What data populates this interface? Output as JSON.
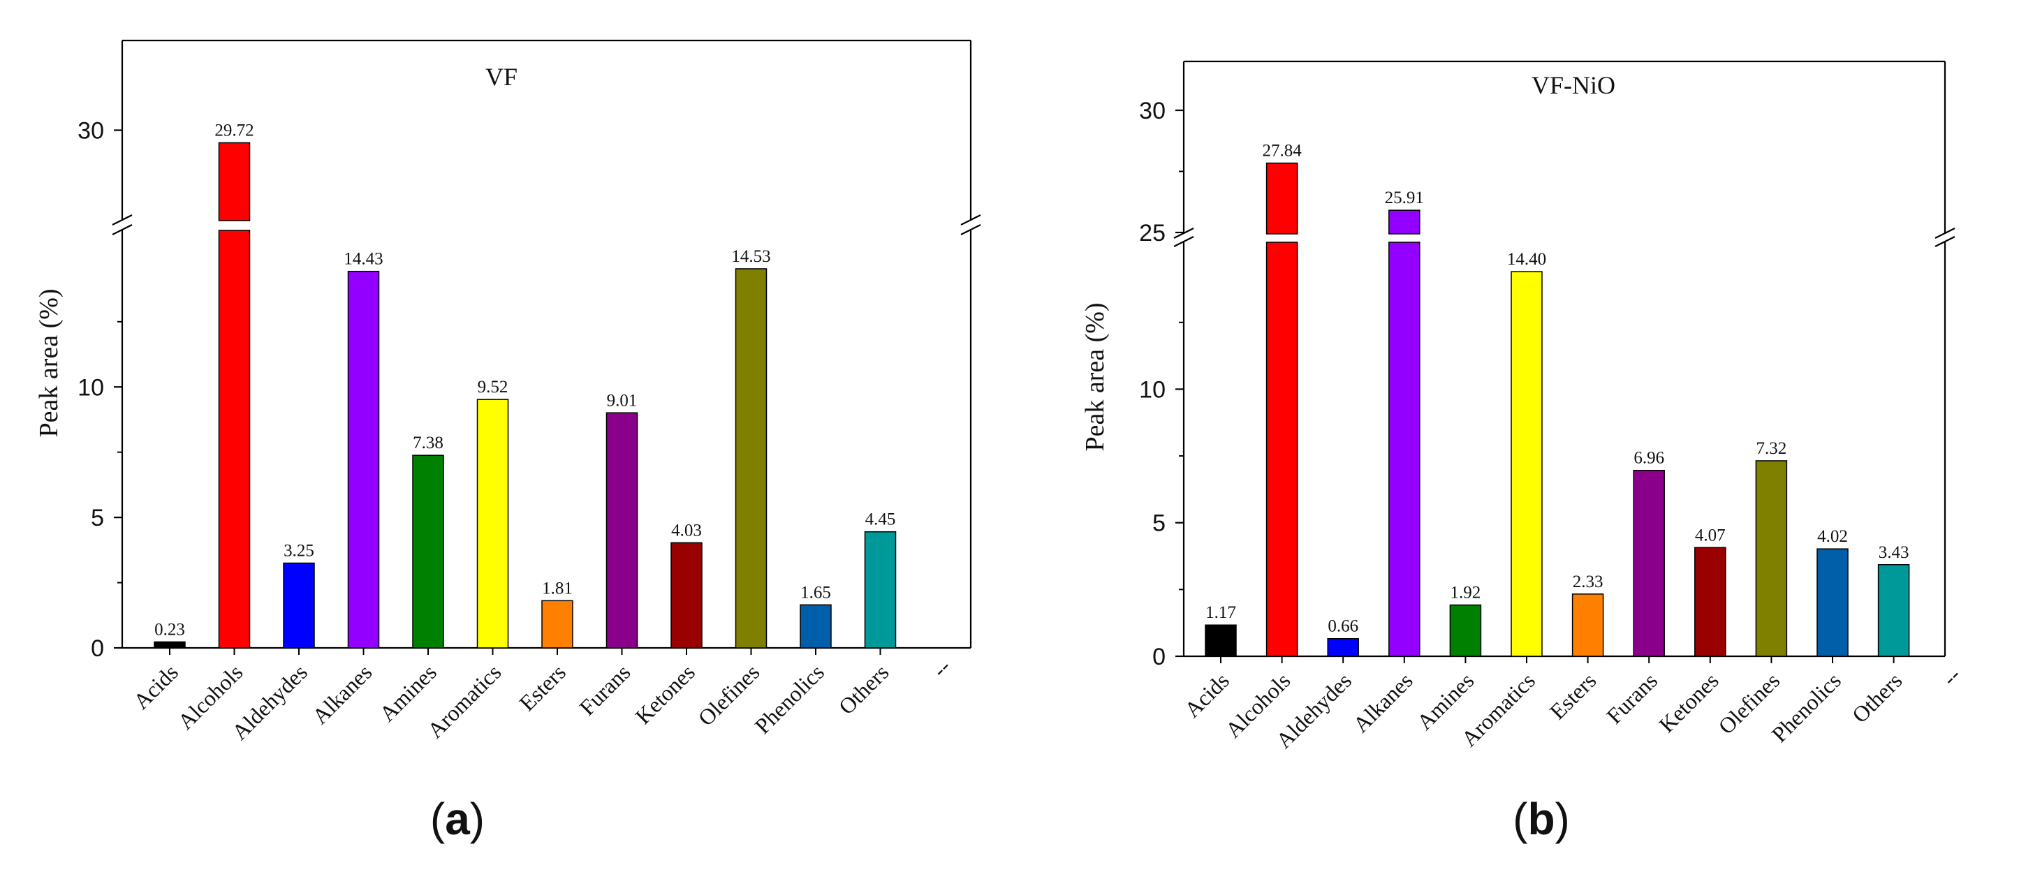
{
  "chart_data": [
    {
      "type": "bar",
      "title": "VF",
      "ylabel": "Peak area (%)",
      "xlabel": "",
      "sublabel_open": "(",
      "sublabel_letter": "a",
      "sublabel_close": ")",
      "categories": [
        "Acids",
        "Alcohols",
        "Aldehydes",
        "Alkanes",
        "Amines",
        "Aromatics",
        "Esters",
        "Furans",
        "Ketones",
        "Olefines",
        "Phenolics",
        "Others"
      ],
      "trailing_tick": "--",
      "values": [
        0.23,
        29.72,
        3.25,
        14.43,
        7.38,
        9.52,
        1.81,
        9.01,
        4.03,
        14.53,
        1.65,
        4.45
      ],
      "value_labels": [
        "0.23",
        "29.72",
        "3.25",
        "14.43",
        "7.38",
        "9.52",
        "1.81",
        "9.01",
        "4.03",
        "14.53",
        "1.65",
        "4.45"
      ],
      "colors": [
        "#000000",
        "#ff0000",
        "#0000ff",
        "#9400ff",
        "#008000",
        "#ffff00",
        "#ff8000",
        "#8b008b",
        "#990000",
        "#7f7f00",
        "#005fa8",
        "#009999"
      ],
      "ylim_lower": [
        0,
        16
      ],
      "ylim_upper": [
        28,
        32
      ],
      "axis_break": 16,
      "yticks_lower": [
        0,
        5,
        10
      ],
      "yticks_upper": [
        30
      ],
      "ytick_labels_lower": [
        "0",
        "5",
        "10"
      ],
      "ytick_labels_upper": [
        "30"
      ]
    },
    {
      "type": "bar",
      "title": "VF-NiO",
      "ylabel": "Peak area (%)",
      "xlabel": "",
      "sublabel_open": "(",
      "sublabel_letter": "b",
      "sublabel_close": ")",
      "categories": [
        "Acids",
        "Alcohols",
        "Aldehydes",
        "Alkanes",
        "Amines",
        "Aromatics",
        "Esters",
        "Furans",
        "Ketones",
        "Olefines",
        "Phenolics",
        "Others"
      ],
      "trailing_tick": "--",
      "values": [
        1.17,
        27.84,
        0.66,
        25.91,
        1.92,
        14.4,
        2.33,
        6.96,
        4.07,
        7.32,
        4.02,
        3.43
      ],
      "value_labels": [
        "1.17",
        "27.84",
        "0.66",
        "25.91",
        "1.92",
        "14.40",
        "2.33",
        "6.96",
        "4.07",
        "7.32",
        "4.02",
        "3.43"
      ],
      "colors": [
        "#000000",
        "#ff0000",
        "#0000ff",
        "#9400ff",
        "#008000",
        "#ffff00",
        "#ff8000",
        "#8b008b",
        "#990000",
        "#7f7f00",
        "#005fa8",
        "#009999"
      ],
      "ylim_lower": [
        0,
        15.5
      ],
      "ylim_upper": [
        25,
        32
      ],
      "axis_break": 15.5,
      "yticks_lower": [
        0,
        5,
        10
      ],
      "yticks_upper": [
        25,
        30
      ],
      "ytick_labels_lower": [
        "0",
        "5",
        "10"
      ],
      "ytick_labels_upper": [
        "25",
        "30"
      ]
    }
  ]
}
